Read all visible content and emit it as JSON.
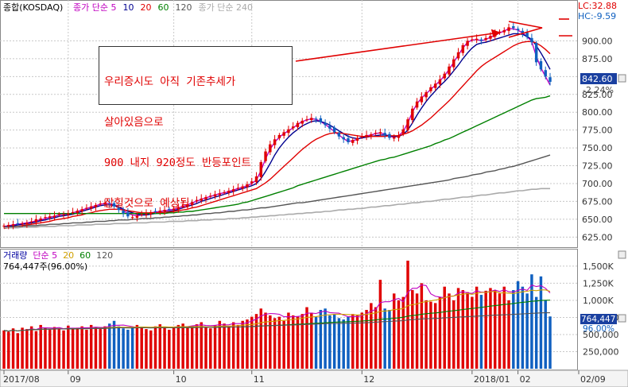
{
  "price_panel": {
    "symbol": "종합(KOSDAQ)",
    "legend": [
      {
        "text": "종가 단순 5",
        "color": "#c000c0"
      },
      {
        "text": "10",
        "color": "#000090"
      },
      {
        "text": "20",
        "color": "#e00000"
      },
      {
        "text": "60",
        "color": "#008000"
      },
      {
        "text": "120",
        "color": "#555555"
      },
      {
        "text": "종가 단순 240",
        "color": "#aaaaaa"
      }
    ],
    "lc_label": "LC:32.88",
    "hc_label": "HC:-9.59",
    "current_price": "842.60",
    "change_pct": "-2.24%",
    "annotation_lines": [
      "우리증시도 아직 기존추세가",
      "살아있음으로",
      "900 내지 920정도 반등포인트",
      "잡힐것으로 예상됨"
    ]
  },
  "volume_panel": {
    "legend": [
      {
        "text": "거래량",
        "color": "#0000a0"
      },
      {
        "text": "단순 5",
        "color": "#c000c0"
      },
      {
        "text": "20",
        "color": "#d0a000"
      },
      {
        "text": "60",
        "color": "#008000"
      },
      {
        "text": "120",
        "color": "#555555"
      }
    ],
    "volume_readout": "764,447주(96.00%)",
    "current_volume": "764,447",
    "current_volume_pct": "96.00%"
  },
  "x_axis_labels": [
    "2017/08",
    "09",
    "10",
    "11",
    "12",
    "2018/01",
    "02",
    "02/09"
  ],
  "colors": {
    "up": "#e00000",
    "down": "#1060c0",
    "grid": "#c8c8c8",
    "axis_text": "#333333",
    "arrow": "#e00000"
  },
  "chart_data": [
    {
      "type": "candlestick",
      "title": "종합(KOSDAQ)",
      "y_ticks": [
        625,
        650,
        675,
        700,
        725,
        750,
        775,
        800,
        825,
        850,
        875,
        900
      ],
      "y_tick_labels": [
        "625.00",
        "650.00",
        "675.00",
        "700.00",
        "725.00",
        "750.00",
        "775.00",
        "800.00",
        "825.00",
        "850.00",
        "875.00",
        "900.00"
      ],
      "ylim": [
        612,
        935
      ],
      "grid": true,
      "close": [
        641,
        642,
        643,
        644,
        644,
        645,
        647,
        650,
        651,
        653,
        654,
        655,
        657,
        657,
        658,
        660,
        662,
        664,
        666,
        668,
        670,
        672,
        673,
        671,
        668,
        663,
        658,
        654,
        653,
        655,
        657,
        658,
        660,
        661,
        662,
        663,
        664,
        665,
        667,
        669,
        671,
        674,
        677,
        679,
        681,
        683,
        685,
        686,
        688,
        690,
        692,
        694,
        696,
        699,
        703,
        710,
        730,
        745,
        755,
        762,
        768,
        772,
        776,
        780,
        785,
        788,
        790,
        792,
        790,
        786,
        782,
        777,
        772,
        766,
        762,
        758,
        761,
        764,
        766,
        768,
        769,
        771,
        772,
        768,
        764,
        765,
        768,
        776,
        790,
        805,
        815,
        822,
        828,
        835,
        840,
        846,
        854,
        864,
        874,
        884,
        894,
        900,
        902,
        903,
        900,
        904,
        907,
        910,
        913,
        915,
        919,
        918,
        915,
        910,
        905,
        898,
        870,
        860,
        850,
        842.6
      ],
      "ma_series": [
        {
          "name": "종가 단순 5",
          "color": "#c000c0",
          "values": [
            640,
            641,
            642,
            643,
            644,
            645,
            646,
            648,
            649,
            651,
            653,
            654,
            656,
            657,
            657,
            659,
            661,
            663,
            665,
            667,
            669,
            671,
            672,
            672,
            670,
            667,
            662,
            658,
            656,
            655,
            656,
            657,
            659,
            660,
            661,
            662,
            663,
            664,
            666,
            668,
            670,
            673,
            675,
            678,
            680,
            682,
            684,
            686,
            687,
            689,
            691,
            693,
            695,
            697,
            700,
            705,
            718,
            735,
            748,
            758,
            765,
            770,
            774,
            778,
            783,
            787,
            789,
            791,
            790,
            787,
            783,
            778,
            773,
            768,
            763,
            759,
            760,
            762,
            765,
            767,
            768,
            770,
            771,
            769,
            766,
            765,
            767,
            773,
            785,
            800,
            812,
            820,
            826,
            832,
            838,
            844,
            851,
            860,
            870,
            880,
            890,
            898,
            901,
            902,
            900,
            902,
            905,
            908,
            911,
            914,
            917,
            917,
            915,
            911,
            906,
            899,
            878,
            862,
            850,
            838
          ]
        },
        {
          "name": "10",
          "color": "#000090",
          "values": [
            639,
            640,
            641,
            642,
            643,
            644,
            645,
            646,
            648,
            649,
            651,
            652,
            654,
            655,
            656,
            657,
            659,
            661,
            663,
            665,
            667,
            669,
            670,
            670,
            669,
            667,
            664,
            661,
            659,
            657,
            656,
            656,
            657,
            658,
            659,
            660,
            661,
            662,
            664,
            666,
            668,
            670,
            672,
            675,
            677,
            679,
            681,
            683,
            685,
            687,
            689,
            691,
            693,
            695,
            697,
            700,
            707,
            717,
            728,
            740,
            750,
            758,
            765,
            771,
            776,
            781,
            784,
            787,
            788,
            787,
            785,
            782,
            778,
            774,
            770,
            766,
            764,
            763,
            764,
            765,
            766,
            767,
            768,
            768,
            767,
            766,
            766,
            769,
            775,
            785,
            796,
            806,
            815,
            823,
            830,
            837,
            843,
            850,
            858,
            866,
            875,
            883,
            890,
            895,
            897,
            898,
            900,
            902,
            904,
            906,
            908,
            910,
            910,
            909,
            906,
            902,
            893,
            883,
            872,
            860
          ]
        },
        {
          "name": "20",
          "color": "#e00000",
          "values": [
            637,
            638,
            639,
            640,
            641,
            642,
            643,
            644,
            645,
            646,
            647,
            649,
            650,
            651,
            652,
            654,
            655,
            656,
            658,
            659,
            661,
            662,
            663,
            664,
            664,
            664,
            663,
            662,
            661,
            660,
            659,
            659,
            659,
            659,
            659,
            660,
            660,
            661,
            662,
            663,
            664,
            666,
            667,
            669,
            671,
            673,
            675,
            677,
            679,
            681,
            683,
            685,
            687,
            689,
            691,
            693,
            697,
            701,
            706,
            712,
            718,
            724,
            730,
            736,
            742,
            748,
            753,
            758,
            762,
            765,
            768,
            770,
            771,
            771,
            770,
            769,
            768,
            767,
            766,
            766,
            766,
            766,
            766,
            766,
            767,
            767,
            767,
            769,
            771,
            774,
            778,
            782,
            787,
            792,
            798,
            804,
            810,
            816,
            823,
            830,
            837,
            844,
            851,
            858,
            864,
            869,
            873,
            877,
            881,
            885,
            889,
            893,
            896,
            898,
            899,
            899,
            897,
            893,
            888,
            882
          ]
        },
        {
          "name": "60",
          "color": "#008000",
          "values": [
            658,
            658,
            658,
            658,
            658,
            658,
            658,
            658,
            658,
            658,
            658,
            658,
            658,
            658,
            658,
            658,
            658,
            658,
            658,
            658,
            658,
            658,
            658,
            658,
            658,
            658,
            658,
            658,
            658,
            658,
            658,
            658,
            658,
            658,
            658,
            658,
            659,
            659,
            660,
            660,
            661,
            661,
            662,
            663,
            664,
            665,
            666,
            667,
            668,
            669,
            670,
            671,
            673,
            674,
            676,
            678,
            680,
            682,
            684,
            686,
            688,
            690,
            692,
            694,
            697,
            699,
            701,
            703,
            705,
            707,
            709,
            711,
            713,
            715,
            717,
            719,
            721,
            723,
            725,
            727,
            729,
            731,
            733,
            734,
            736,
            737,
            739,
            741,
            743,
            745,
            747,
            749,
            751,
            753,
            756,
            758,
            761,
            763,
            766,
            769,
            772,
            775,
            778,
            781,
            784,
            787,
            790,
            793,
            796,
            799,
            802,
            805,
            808,
            811,
            814,
            817,
            819,
            820,
            821,
            823
          ]
        },
        {
          "name": "120",
          "color": "#555555",
          "values": [
            639,
            639,
            640,
            640,
            640,
            641,
            641,
            641,
            642,
            642,
            643,
            643,
            643,
            644,
            644,
            645,
            645,
            645,
            646,
            646,
            647,
            647,
            647,
            648,
            648,
            649,
            649,
            649,
            650,
            650,
            651,
            651,
            651,
            652,
            652,
            653,
            653,
            654,
            654,
            655,
            655,
            656,
            656,
            657,
            658,
            658,
            659,
            659,
            660,
            661,
            661,
            662,
            663,
            663,
            664,
            665,
            666,
            666,
            667,
            668,
            669,
            670,
            671,
            672,
            673,
            673,
            674,
            675,
            676,
            677,
            678,
            679,
            680,
            681,
            682,
            683,
            684,
            685,
            686,
            687,
            688,
            689,
            690,
            691,
            692,
            693,
            694,
            695,
            696,
            697,
            698,
            699,
            700,
            701,
            702,
            703,
            704,
            705,
            707,
            708,
            709,
            710,
            712,
            713,
            714,
            716,
            717,
            718,
            720,
            721,
            723,
            724,
            726,
            728,
            730,
            732,
            734,
            736,
            738,
            740
          ]
        },
        {
          "name": "종가 단순 240",
          "color": "#aaaaaa",
          "values": [
            638,
            638,
            638,
            638,
            639,
            639,
            639,
            639,
            640,
            640,
            640,
            640,
            641,
            641,
            641,
            641,
            642,
            642,
            642,
            642,
            643,
            643,
            643,
            643,
            644,
            644,
            644,
            644,
            645,
            645,
            645,
            645,
            646,
            646,
            646,
            646,
            647,
            647,
            647,
            647,
            648,
            648,
            648,
            649,
            649,
            649,
            650,
            650,
            650,
            651,
            651,
            651,
            652,
            652,
            653,
            653,
            654,
            654,
            655,
            655,
            656,
            656,
            657,
            657,
            658,
            658,
            659,
            659,
            660,
            660,
            661,
            661,
            662,
            663,
            663,
            664,
            664,
            665,
            665,
            666,
            667,
            667,
            668,
            669,
            669,
            670,
            671,
            671,
            672,
            673,
            673,
            674,
            675,
            675,
            676,
            677,
            678,
            678,
            679,
            680,
            681,
            681,
            682,
            683,
            684,
            684,
            685,
            686,
            687,
            687,
            688,
            689,
            690,
            690,
            691,
            692,
            692,
            693,
            693,
            693
          ]
        }
      ],
      "annotations": [
        "우리증시도 아직 기존추세가 살아있음으로 900 내지 920정도 반등포인트 잡힐것으로 예상됨"
      ]
    },
    {
      "type": "bar",
      "title": "거래량",
      "y_ticks": [
        250000,
        500000,
        750000,
        1000000,
        1250000,
        1500000
      ],
      "y_tick_labels": [
        "250,000",
        "500,000",
        "750,000",
        "1,000K",
        "1,250K",
        "1,500K"
      ],
      "ylim": [
        0,
        1650000
      ],
      "values": [
        560000,
        540000,
        590000,
        520000,
        600000,
        580000,
        620000,
        550000,
        640000,
        600000,
        570000,
        610000,
        590000,
        560000,
        630000,
        580000,
        600000,
        620000,
        570000,
        640000,
        610000,
        580000,
        620000,
        660000,
        700000,
        620000,
        590000,
        570000,
        600000,
        640000,
        610000,
        580000,
        560000,
        620000,
        650000,
        600000,
        570000,
        610000,
        640000,
        660000,
        600000,
        620000,
        650000,
        680000,
        610000,
        590000,
        640000,
        700000,
        660000,
        620000,
        680000,
        640000,
        700000,
        720000,
        760000,
        800000,
        880000,
        820000,
        780000,
        740000,
        760000,
        700000,
        820000,
        780000,
        760000,
        800000,
        900000,
        820000,
        760000,
        860000,
        880000,
        780000,
        800000,
        740000,
        720000,
        760000,
        800000,
        780000,
        820000,
        860000,
        960000,
        900000,
        1300000,
        880000,
        860000,
        1100000,
        1000000,
        1050000,
        1580000,
        1150000,
        1100000,
        1250000,
        1000000,
        980000,
        960000,
        1050000,
        1200000,
        1100000,
        1000000,
        1180000,
        1150000,
        1120000,
        1050000,
        1200000,
        1080000,
        1140000,
        1180000,
        1150000,
        1100000,
        1200000,
        1000000,
        1150000,
        1280000,
        1200000,
        1100000,
        1380000,
        1050000,
        1350000,
        1000000,
        764447
      ],
      "ma_series": [
        {
          "name": "단순 5",
          "color": "#c000c0"
        },
        {
          "name": "20",
          "color": "#d0a000"
        },
        {
          "name": "60",
          "color": "#008000"
        },
        {
          "name": "120",
          "color": "#555555"
        }
      ]
    }
  ]
}
